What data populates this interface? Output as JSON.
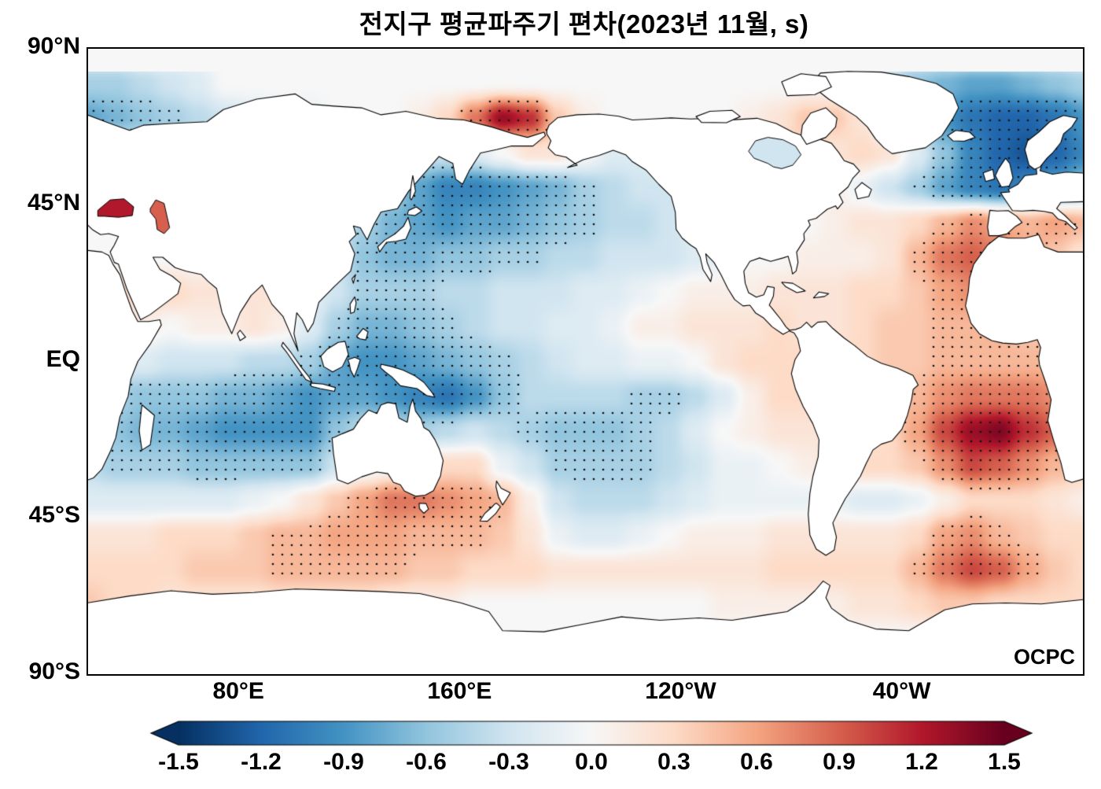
{
  "chart_data": {
    "type": "heatmap",
    "title": "전지구 평균파주기 편차(2023년 11월, s)",
    "variable": "global mean wave period anomaly",
    "units": "s",
    "period": "2023-11",
    "watermark": "OCPC",
    "projection": "equirectangular pacific-centered",
    "lon_range": [
      25,
      385
    ],
    "lat_range": [
      -90,
      90
    ],
    "grid_on": false,
    "yticks": [
      {
        "label": "90°N",
        "lat": 90
      },
      {
        "label": "45°N",
        "lat": 45
      },
      {
        "label": "EQ",
        "lat": 0
      },
      {
        "label": "45°S",
        "lat": -45
      },
      {
        "label": "90°S",
        "lat": -90
      }
    ],
    "xticks": [
      {
        "label": "80°E",
        "lon": 80
      },
      {
        "label": "160°E",
        "lon": 160
      },
      {
        "label": "120°W",
        "lon": 240
      },
      {
        "label": "40°W",
        "lon": 320
      }
    ],
    "colorbar": {
      "min": -1.5,
      "max": 1.5,
      "extend": "both",
      "tick_labels": [
        "-1.5",
        "-1.2",
        "-0.9",
        "-0.6",
        "-0.3",
        "0.0",
        "0.3",
        "0.6",
        "0.9",
        "1.2",
        "1.5"
      ]
    },
    "colormap": [
      {
        "v": -1.5,
        "c": "#053061"
      },
      {
        "v": -1.2,
        "c": "#2166ac"
      },
      {
        "v": -0.9,
        "c": "#4393c3"
      },
      {
        "v": -0.6,
        "c": "#92c5de"
      },
      {
        "v": -0.3,
        "c": "#d1e5f0"
      },
      {
        "v": 0.0,
        "c": "#f7f7f7"
      },
      {
        "v": 0.3,
        "c": "#fddbc7"
      },
      {
        "v": 0.6,
        "c": "#f4a582"
      },
      {
        "v": 0.9,
        "c": "#d6604d"
      },
      {
        "v": 1.2,
        "c": "#b2182b"
      },
      {
        "v": 1.5,
        "c": "#67001f"
      }
    ],
    "stipple_threshold": 0.45,
    "grid_deg": 10,
    "grid_lon_start": 25,
    "grid_lat_start": 90,
    "lakes": [
      {
        "name": "black-sea",
        "anomaly_s": 1.2
      },
      {
        "name": "caspian-sea",
        "anomaly_s": 0.9
      },
      {
        "name": "hudson-bay",
        "anomaly_s": -0.3
      }
    ],
    "anomaly_grid_s": [
      [
        0,
        0,
        0,
        0,
        0,
        0,
        0,
        0,
        0,
        0,
        0,
        0,
        0,
        0,
        0,
        0,
        0,
        0,
        0,
        0,
        0,
        0,
        0,
        0,
        0,
        0,
        0,
        0,
        0,
        0,
        0,
        0,
        0,
        0,
        0,
        0,
        0
      ],
      [
        -0.5,
        -0.5,
        -0.4,
        -0.3,
        -0.2,
        0,
        0,
        0,
        0,
        0,
        0,
        0,
        0,
        0,
        0,
        0,
        0,
        0,
        0,
        0,
        0,
        0,
        0,
        0,
        0,
        0,
        0,
        0,
        -0.2,
        -0.4,
        -0.6,
        -0.7,
        -0.8,
        -0.8,
        -0.7,
        -0.6,
        -0.5
      ],
      [
        -0.8,
        -0.7,
        -0.6,
        -0.5,
        -0.4,
        -0.3,
        -0.2,
        -0.1,
        -0.1,
        0,
        0,
        0,
        0.1,
        0.3,
        0.8,
        1.3,
        1.1,
        0.4,
        0.1,
        0,
        0,
        0,
        0,
        0,
        0.1,
        0.2,
        0.4,
        0.4,
        0.2,
        -0.2,
        -0.6,
        -0.9,
        -1.1,
        -1.2,
        -1.2,
        -1.1,
        -0.9
      ],
      [
        0,
        0,
        -0.2,
        -0.2,
        -0.1,
        0,
        0,
        0,
        0,
        0,
        -0.1,
        -0.2,
        -0.3,
        -0.3,
        -0.2,
        0,
        0.2,
        0.2,
        0,
        -0.2,
        -0.2,
        -0.1,
        0,
        0.2,
        0.4,
        0.4,
        0.3,
        0.2,
        0.3,
        0.2,
        -0.2,
        -0.6,
        -1,
        -1.2,
        -1.3,
        -1.2,
        -1
      ],
      [
        0,
        0,
        0,
        0,
        0,
        0,
        0,
        0,
        0,
        -0.1,
        -0.2,
        -0.5,
        -0.8,
        -1,
        -1,
        -0.9,
        -0.8,
        -0.7,
        -0.5,
        -0.4,
        -0.3,
        -0.3,
        -0.2,
        -0.1,
        0,
        0,
        0,
        0.1,
        -0.1,
        -0.3,
        -0.5,
        -0.8,
        -1,
        -1.1,
        -1,
        -0.8,
        -0.6
      ],
      [
        0,
        0,
        0,
        0,
        0,
        0,
        0,
        0,
        -0.1,
        -0.2,
        -0.5,
        -0.7,
        -0.8,
        -0.9,
        -0.8,
        -0.8,
        -0.7,
        -0.6,
        -0.5,
        -0.4,
        -0.4,
        -0.3,
        -0.2,
        -0.1,
        0,
        0,
        0,
        0.1,
        0.2,
        0.2,
        0.3,
        0.5,
        0.7,
        0.6,
        0.5,
        0.6,
        0.5
      ],
      [
        0,
        0,
        0,
        0,
        0,
        0.1,
        0.1,
        0,
        -0.1,
        -0.3,
        -0.6,
        -0.7,
        -0.7,
        -0.6,
        -0.6,
        -0.5,
        -0.5,
        -0.4,
        -0.4,
        -0.3,
        -0.3,
        -0.3,
        -0.2,
        -0.1,
        0,
        0,
        0.1,
        0.1,
        0.1,
        0.2,
        0.5,
        0.8,
        0.9,
        0.8,
        0.6,
        0.4,
        0.2
      ],
      [
        0.1,
        0.2,
        0.3,
        0.3,
        0.2,
        0.2,
        0.2,
        0.2,
        -0.1,
        -0.3,
        -0.5,
        -0.5,
        -0.5,
        -0.4,
        -0.4,
        -0.3,
        -0.3,
        -0.3,
        -0.2,
        -0.2,
        -0.1,
        0,
        0.1,
        0.1,
        0.1,
        0.2,
        0.2,
        0.2,
        0.3,
        0.3,
        0.4,
        0.6,
        0.7,
        0.6,
        0.4,
        0.2,
        0.1
      ],
      [
        0,
        0.1,
        0.1,
        0,
        0.1,
        0.1,
        0.2,
        0.1,
        -0.2,
        -0.5,
        -0.7,
        -0.7,
        -0.6,
        -0.5,
        -0.4,
        -0.3,
        -0.3,
        -0.2,
        -0.2,
        -0.1,
        0.1,
        0.1,
        0.2,
        0.2,
        0.2,
        0.3,
        0.2,
        0.2,
        0.3,
        0.4,
        0.4,
        0.5,
        0.5,
        0.5,
        0.4,
        0.4,
        0.3
      ],
      [
        -0.1,
        -0.2,
        -0.2,
        -0.3,
        -0.3,
        -0.3,
        -0.4,
        -0.4,
        -0.5,
        -0.8,
        -0.9,
        -0.9,
        -0.8,
        -0.7,
        -0.6,
        -0.5,
        -0.4,
        -0.3,
        -0.2,
        -0.2,
        -0.1,
        -0.1,
        0,
        0.2,
        0.3,
        0.3,
        0.3,
        0.3,
        0.3,
        0.4,
        0.4,
        0.5,
        0.5,
        0.5,
        0.5,
        0.5,
        0.4
      ],
      [
        -0.3,
        -0.5,
        -0.6,
        -0.6,
        -0.6,
        -0.7,
        -0.7,
        -0.8,
        -0.9,
        -0.8,
        -0.8,
        -0.9,
        -1,
        -1.1,
        -0.9,
        -0.6,
        -0.4,
        -0.4,
        -0.4,
        -0.4,
        -0.5,
        -0.5,
        -0.4,
        -0.2,
        0.1,
        0.3,
        0.3,
        0.3,
        0.3,
        0.3,
        0.5,
        0.7,
        0.8,
        0.8,
        0.8,
        0.7,
        0.6
      ],
      [
        -0.4,
        -0.6,
        -0.7,
        -0.7,
        -0.8,
        -0.9,
        -0.9,
        -0.9,
        -0.9,
        -0.6,
        -0.4,
        -0.4,
        -0.5,
        -0.4,
        -0.3,
        -0.4,
        -0.5,
        -0.6,
        -0.6,
        -0.6,
        -0.5,
        -0.4,
        -0.2,
        0,
        0.1,
        0.2,
        0.2,
        0.2,
        0.2,
        0.3,
        0.6,
        1,
        1.3,
        1.4,
        1.1,
        0.9,
        0.7
      ],
      [
        -0.4,
        -0.5,
        -0.5,
        -0.5,
        -0.6,
        -0.6,
        -0.6,
        -0.6,
        -0.6,
        -0.3,
        -0.1,
        0,
        0.1,
        0.3,
        0.3,
        -0.1,
        -0.3,
        -0.5,
        -0.5,
        -0.5,
        -0.5,
        -0.4,
        -0.3,
        -0.1,
        -0.1,
        0,
        0.1,
        0.2,
        0.3,
        0.3,
        0.4,
        0.7,
        1,
        0.9,
        0.7,
        0.5,
        0.4
      ],
      [
        -0.2,
        -0.2,
        -0.2,
        -0.2,
        -0.2,
        -0.2,
        -0.1,
        0,
        0.2,
        0.4,
        0.6,
        0.8,
        0.8,
        0.7,
        0.6,
        0.5,
        0.1,
        -0.3,
        -0.4,
        -0.4,
        -0.4,
        -0.3,
        -0.2,
        -0.1,
        -0.1,
        -0.1,
        -0.1,
        -0.1,
        -0.2,
        -0.2,
        -0.1,
        0.1,
        0.3,
        0.3,
        0.3,
        0.2,
        0.1
      ],
      [
        0.2,
        0.2,
        0.2,
        0.3,
        0.3,
        0.3,
        0.4,
        0.5,
        0.5,
        0.6,
        0.6,
        0.6,
        0.5,
        0.5,
        0.5,
        0.4,
        0.2,
        -0.1,
        -0.2,
        -0.2,
        -0.1,
        0,
        0.1,
        0.1,
        0.1,
        0.2,
        0.2,
        0.2,
        0.2,
        0.2,
        0.3,
        0.6,
        0.7,
        0.5,
        0.4,
        0.3,
        0.3
      ],
      [
        0.3,
        0.3,
        0.3,
        0.3,
        0.4,
        0.4,
        0.4,
        0.5,
        0.5,
        0.5,
        0.5,
        0.5,
        0.4,
        0.4,
        0.3,
        0.3,
        0.3,
        0.2,
        0.2,
        0.2,
        0.2,
        0.2,
        0.2,
        0.2,
        0.2,
        0.3,
        0.3,
        0.3,
        0.3,
        0.3,
        0.5,
        0.8,
        1,
        0.9,
        0.6,
        0.4,
        0.3
      ],
      [
        0.4,
        0.3,
        0.3,
        0.2,
        0.2,
        0.2,
        0.2,
        0.2,
        0.2,
        0.2,
        0.2,
        0.1,
        0.1,
        0.1,
        0,
        0,
        0,
        0,
        0,
        0,
        0,
        0,
        0,
        0.1,
        0.1,
        0.1,
        0.1,
        0.1,
        0.2,
        0.2,
        0.3,
        0.4,
        0.4,
        0.3,
        0.3,
        0.3,
        0.3
      ],
      [
        0,
        0,
        0,
        0,
        0,
        0,
        0,
        0,
        0,
        0,
        0,
        0,
        0,
        0,
        0,
        0,
        0,
        0,
        0,
        0,
        0,
        0,
        0,
        0,
        0,
        0,
        0,
        0,
        0,
        0,
        0,
        0,
        0,
        0,
        0,
        0,
        0
      ],
      [
        0,
        0,
        0,
        0,
        0,
        0,
        0,
        0,
        0,
        0,
        0,
        0,
        0,
        0,
        0,
        0,
        0,
        0,
        0,
        0,
        0,
        0,
        0,
        0,
        0,
        0,
        0,
        0,
        0,
        0,
        0,
        0,
        0,
        0,
        0,
        0,
        0
      ]
    ]
  }
}
